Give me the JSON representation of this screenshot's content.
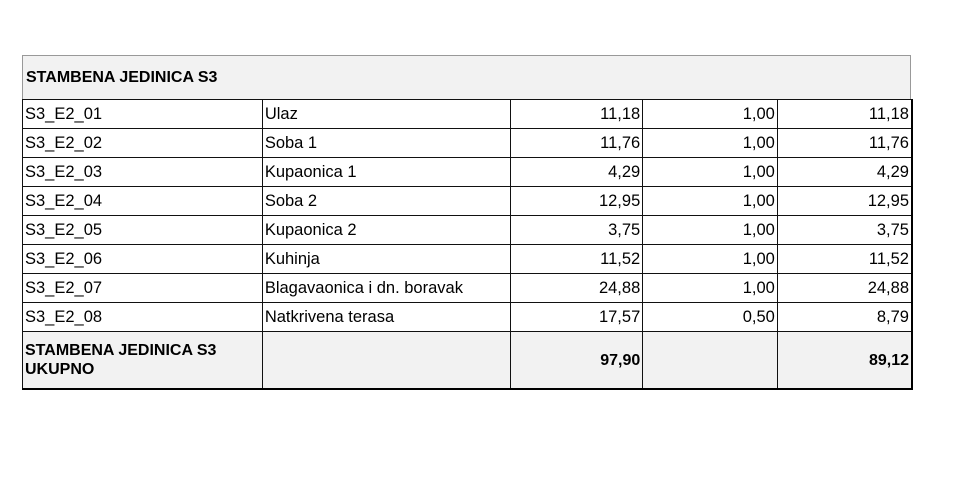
{
  "title": "STAMBENA JEDINICA S3",
  "rows": [
    {
      "code": "S3_E2_01",
      "name": "Ulaz",
      "area": "11,18",
      "coef": "1,00",
      "net": "11,18"
    },
    {
      "code": "S3_E2_02",
      "name": "Soba 1",
      "area": "11,76",
      "coef": "1,00",
      "net": "11,76"
    },
    {
      "code": "S3_E2_03",
      "name": "Kupaonica 1",
      "area": "4,29",
      "coef": "1,00",
      "net": "4,29"
    },
    {
      "code": "S3_E2_04",
      "name": "Soba 2",
      "area": "12,95",
      "coef": "1,00",
      "net": "12,95"
    },
    {
      "code": "S3_E2_05",
      "name": "Kupaonica 2",
      "area": "3,75",
      "coef": "1,00",
      "net": "3,75"
    },
    {
      "code": "S3_E2_06",
      "name": "Kuhinja",
      "area": "11,52",
      "coef": "1,00",
      "net": "11,52"
    },
    {
      "code": "S3_E2_07",
      "name": "Blagavaonica i dn. boravak",
      "area": "24,88",
      "coef": "1,00",
      "net": "24,88"
    },
    {
      "code": "S3_E2_08",
      "name": "Natkrivena terasa",
      "area": "17,57",
      "coef": "0,50",
      "net": "8,79"
    }
  ],
  "total": {
    "label_line1": "STAMBENA JEDINICA S3",
    "label_line2": "UKUPNO",
    "area": "97,90",
    "net": "89,12"
  }
}
